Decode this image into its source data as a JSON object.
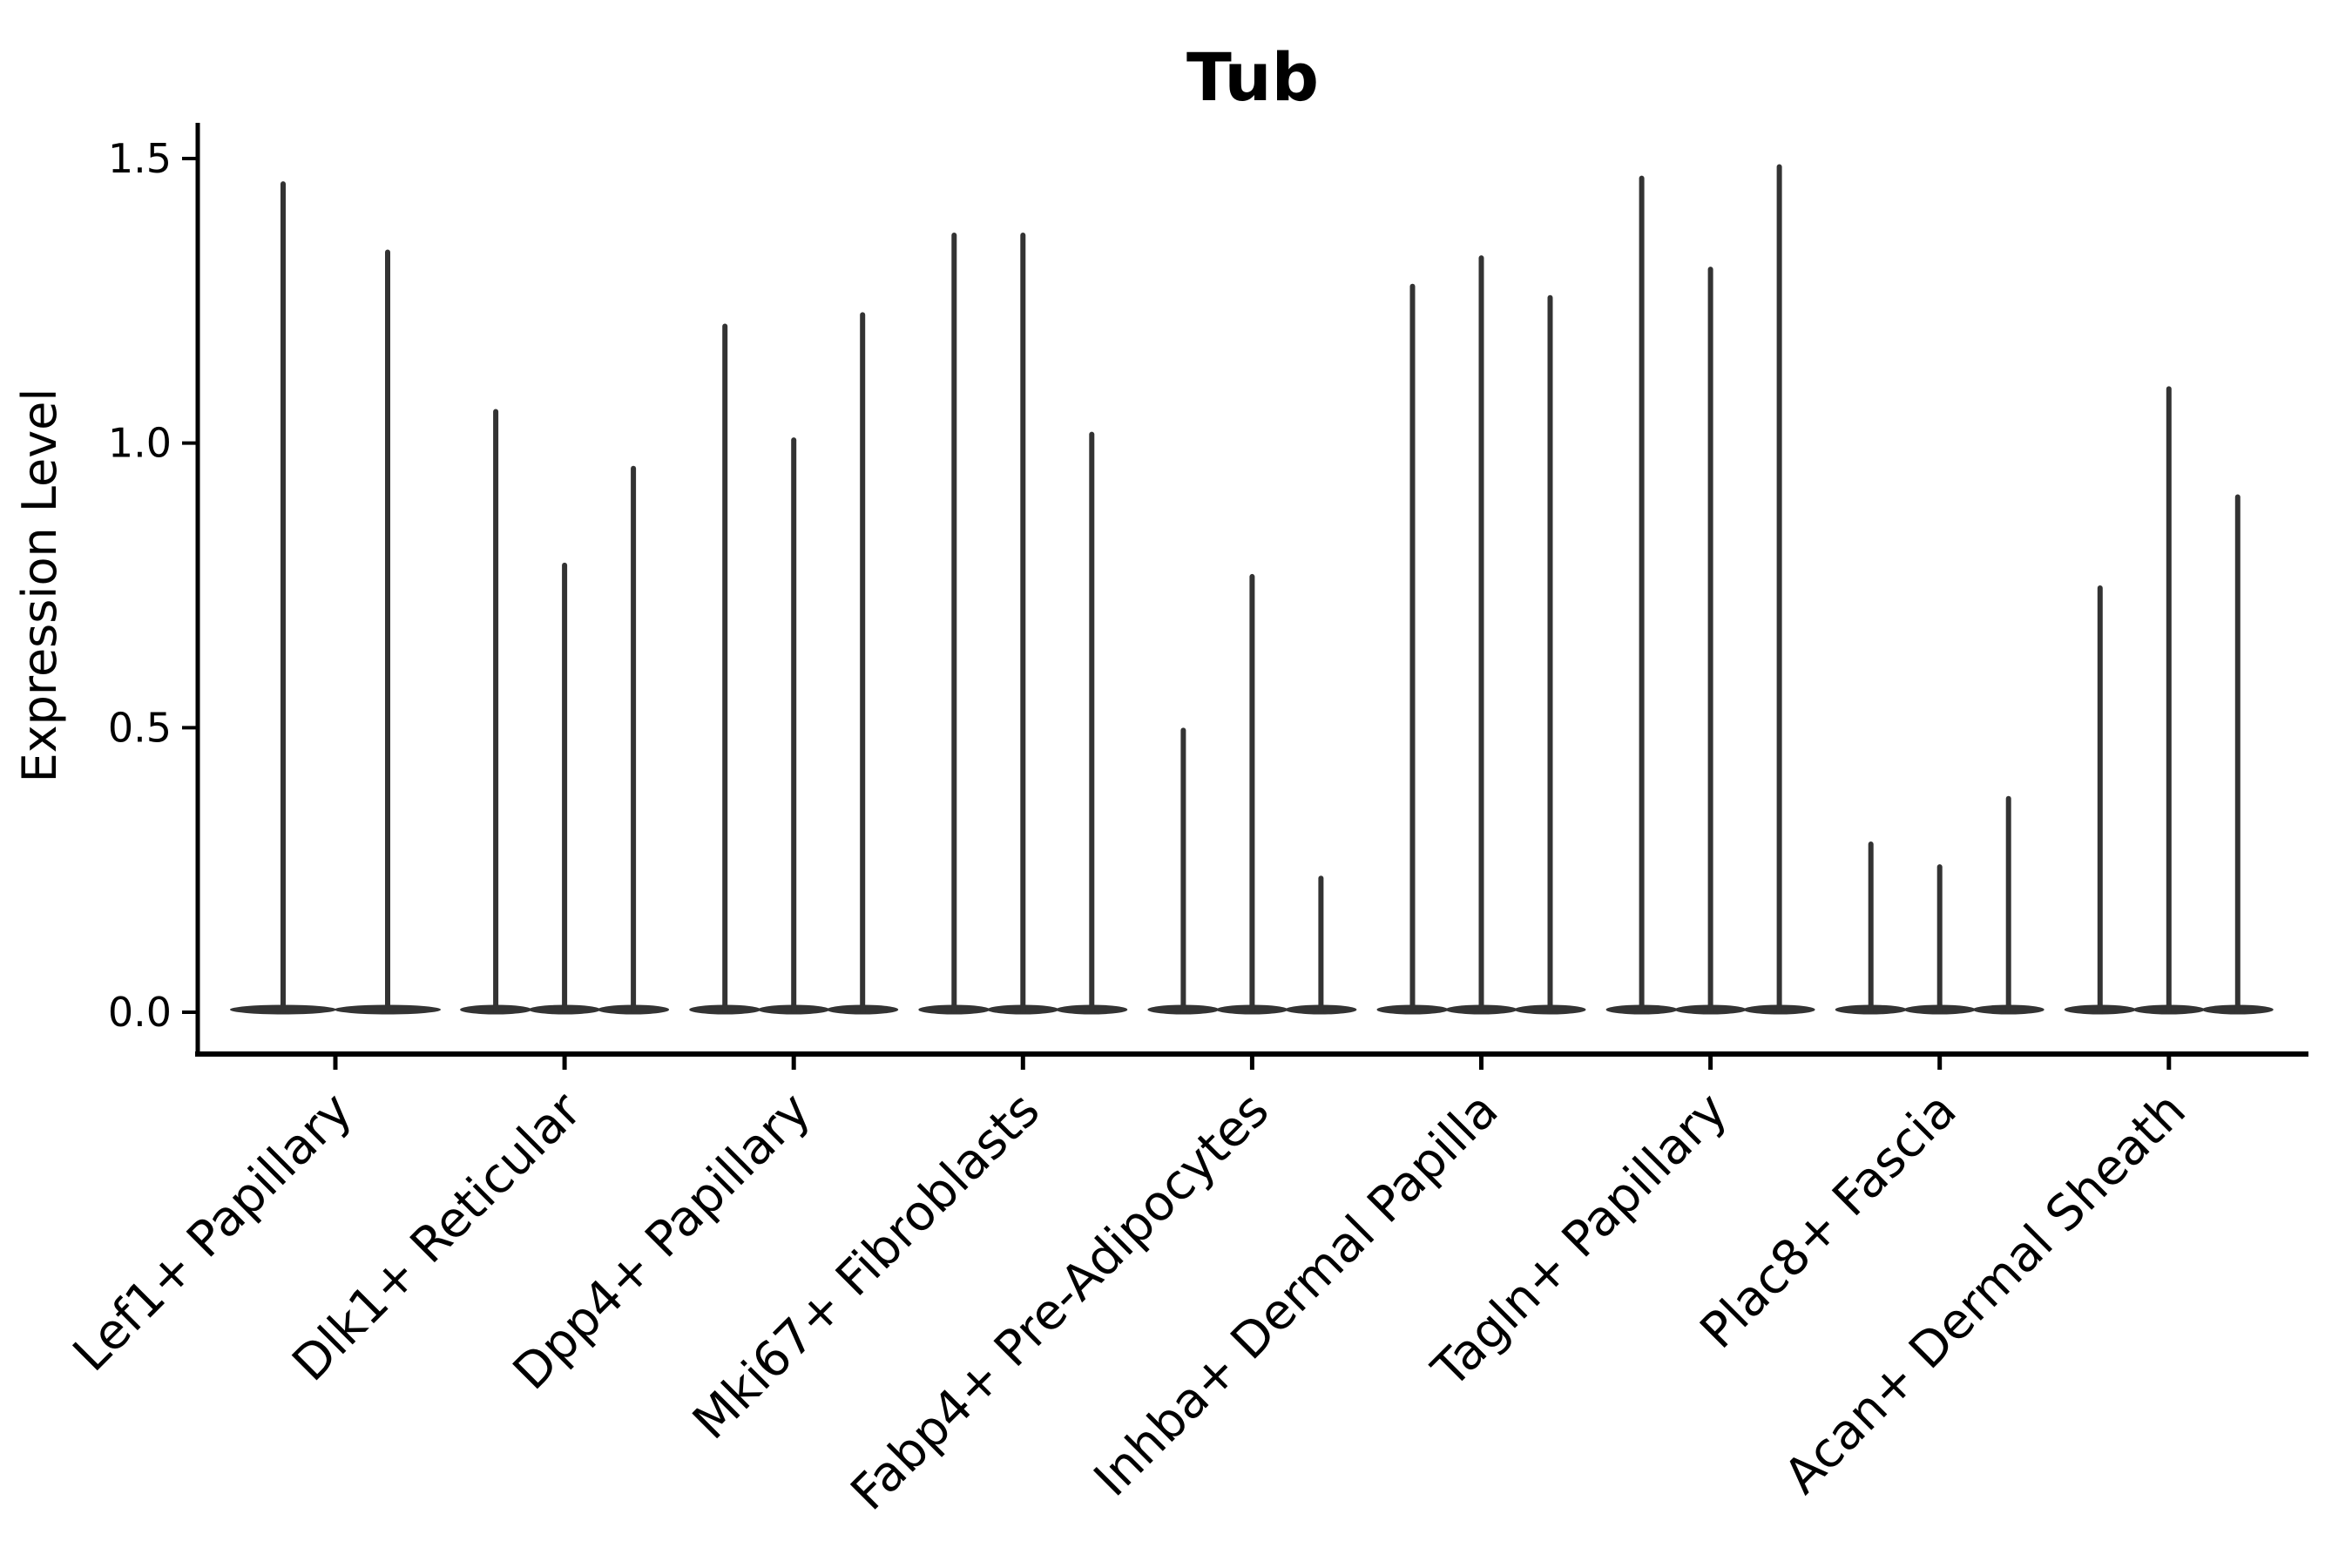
{
  "figure": {
    "title": "Tub",
    "background_color": "#ffffff",
    "axis_color": "#000000",
    "violin_color": "#333333"
  },
  "chart_data": {
    "type": "violin",
    "title": "Tub",
    "xlabel": "",
    "ylabel": "Expression Level",
    "yticks": [
      "0.0",
      "0.5",
      "1.0",
      "1.5"
    ],
    "ytick_values": [
      0.0,
      0.5,
      1.0,
      1.5
    ],
    "ylim": [
      -0.07,
      1.56
    ],
    "grid": false,
    "legend_position": "none",
    "x_tick_rotation_deg": 45,
    "categories": [
      "Lef1+ Papillary",
      "Dlk1+ Reticular",
      "Dpp4+ Papillary",
      "Mki67+ Fibroblasts",
      "Fabp4+ Pre-Adipocytes",
      "Inhba+ Dermal Papilla",
      "Tagln+ Papillary",
      "Plac8+ Fascia",
      "Acan+ Dermal Sheath"
    ],
    "groups": [
      {
        "label": "Lef1+ Papillary",
        "violin_maxima": [
          1.46,
          1.34
        ]
      },
      {
        "label": "Dlk1+ Reticular",
        "violin_maxima": [
          1.06,
          0.79,
          0.96
        ]
      },
      {
        "label": "Dpp4+ Papillary",
        "violin_maxima": [
          1.21,
          1.01,
          1.23
        ]
      },
      {
        "label": "Mki67+ Fibroblasts",
        "violin_maxima": [
          1.37,
          1.37,
          1.02
        ]
      },
      {
        "label": "Fabp4+ Pre-Adipocytes",
        "violin_maxima": [
          0.5,
          0.77,
          0.24
        ]
      },
      {
        "label": "Inhba+ Dermal Papilla",
        "violin_maxima": [
          1.28,
          1.33,
          1.26
        ]
      },
      {
        "label": "Tagln+ Papillary",
        "violin_maxima": [
          1.47,
          1.31,
          1.49
        ]
      },
      {
        "label": "Plac8+ Fascia",
        "violin_maxima": [
          0.3,
          0.26,
          0.38
        ]
      },
      {
        "label": "Acan+ Dermal Sheath",
        "violin_maxima": [
          0.75,
          1.1,
          0.91
        ]
      }
    ]
  }
}
